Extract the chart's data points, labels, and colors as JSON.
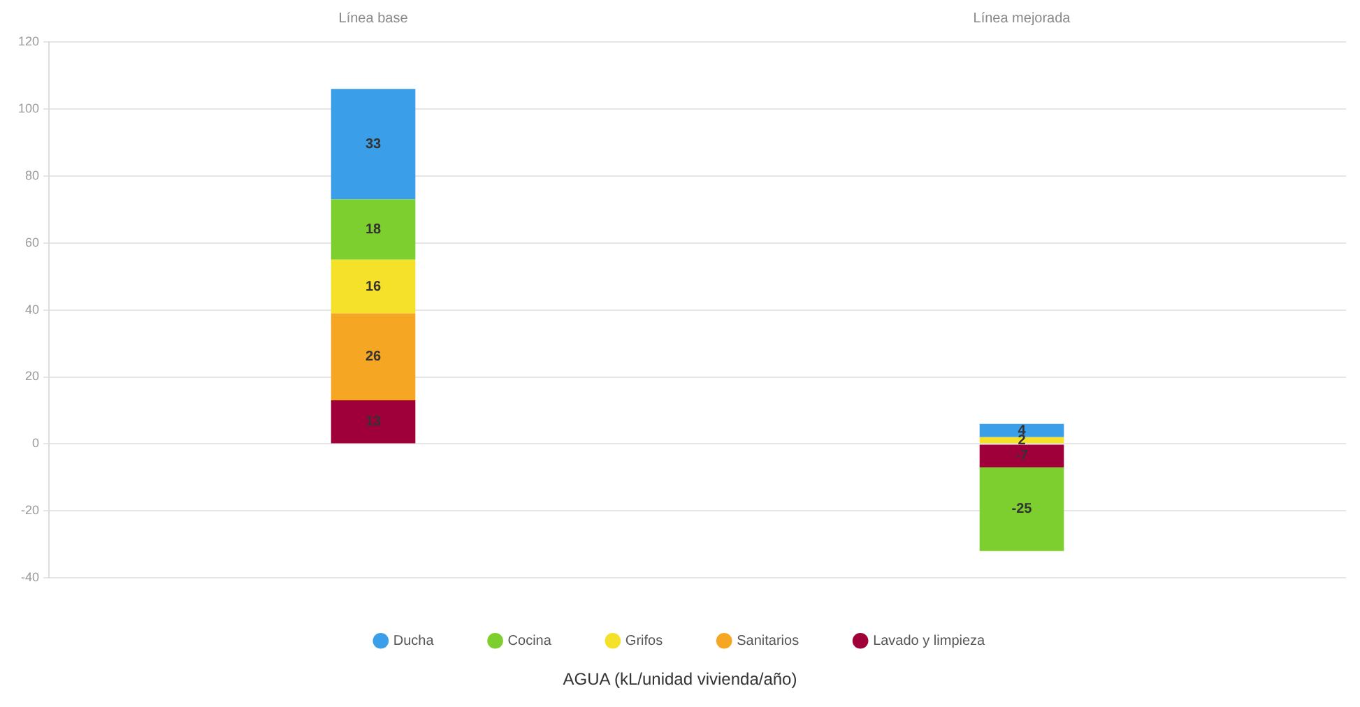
{
  "chart_data": {
    "type": "bar",
    "stacked": true,
    "annotations": [
      "AGUA (kL/unidad vivienda/año)"
    ],
    "categories": [
      "Línea base",
      "Línea mejorada"
    ],
    "series": [
      {
        "name": "Lavado y limpieza",
        "color": "#a0003a",
        "values": [
          13,
          -7
        ]
      },
      {
        "name": "Sanitarios",
        "color": "#f5a623",
        "values": [
          26,
          null
        ]
      },
      {
        "name": "Grifos",
        "color": "#f5e12a",
        "values": [
          16,
          2
        ]
      },
      {
        "name": "Cocina",
        "color": "#7ccf2e",
        "values": [
          18,
          -25
        ]
      },
      {
        "name": "Ducha",
        "color": "#3a9ee8",
        "values": [
          33,
          4
        ]
      }
    ],
    "ylim": [
      -40,
      120
    ],
    "yticks": [
      -40,
      -20,
      0,
      20,
      40,
      60,
      80,
      100,
      120
    ],
    "grid": "y",
    "legend": "bottom",
    "data_labels": true
  }
}
